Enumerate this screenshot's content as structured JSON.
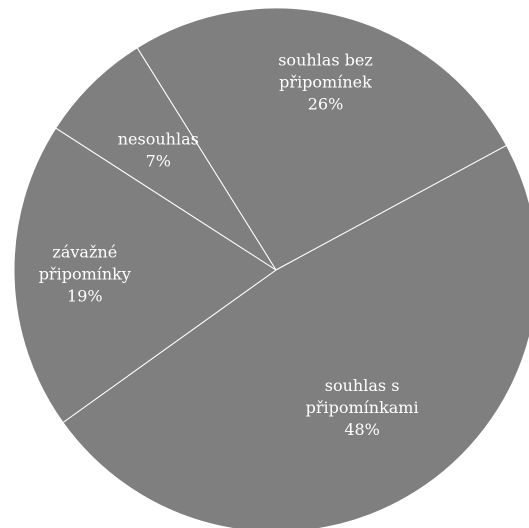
{
  "chart_data": {
    "type": "pie",
    "slices": [
      {
        "label_lines": [
          "souhlas bez",
          "připomínek"
        ],
        "value": 26,
        "value_label": "26%"
      },
      {
        "label_lines": [
          "souhlas s",
          "připomínkami"
        ],
        "value": 48,
        "value_label": "48%"
      },
      {
        "label_lines": [
          "závažné",
          "připomínky"
        ],
        "value": 19,
        "value_label": "19%"
      },
      {
        "label_lines": [
          "nesouhlas"
        ],
        "value": 7,
        "value_label": "7%"
      }
    ],
    "colors": {
      "slice_fill": "#7f7f7f",
      "separator": "#ffffff",
      "label": "#ffffff"
    },
    "legend": "none",
    "labels_placement": "inside"
  }
}
